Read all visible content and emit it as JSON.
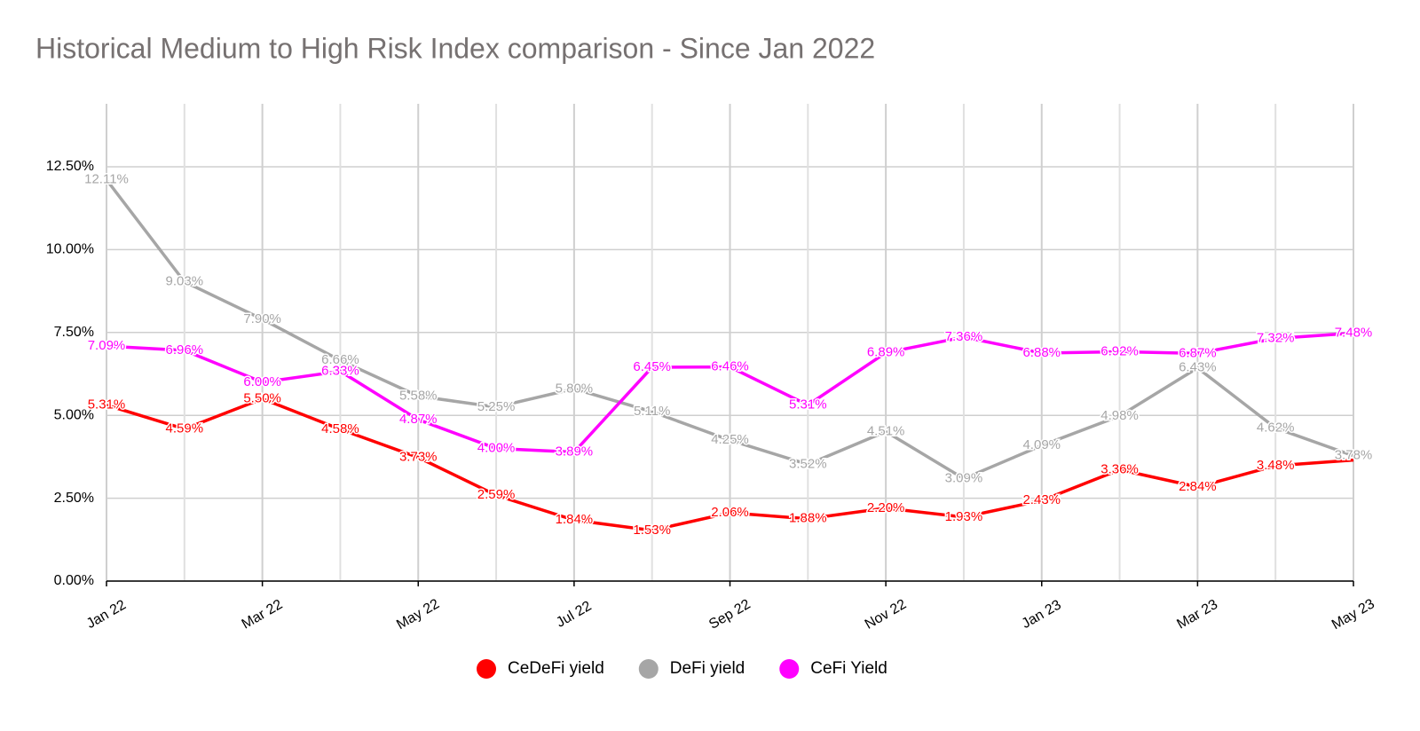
{
  "chart_data": {
    "type": "line",
    "title": "Historical Medium to High Risk Index comparison - Since Jan 2022",
    "categories": [
      "Jan 22",
      null,
      "Mar 22",
      null,
      "May 22",
      null,
      "Jul 22",
      null,
      "Sep 22",
      null,
      "Nov 22",
      null,
      "Jan 23",
      null,
      "Mar 23",
      null,
      "May 23"
    ],
    "series": [
      {
        "name": "CeDeFi yield",
        "color": "#ff0000",
        "values": [
          5.31,
          4.59,
          5.5,
          4.58,
          3.73,
          2.59,
          1.84,
          1.53,
          2.06,
          1.88,
          2.2,
          1.93,
          2.43,
          3.36,
          2.84,
          3.48,
          3.65
        ],
        "value_labels": [
          "5.31%",
          "4.59%",
          "5.50%",
          "4.58%",
          "3.73%",
          "2.59%",
          "1.84%",
          "1.53%",
          "2.06%",
          "1.88%",
          "2.20%",
          "1.93%",
          "2.43%",
          "3.36%",
          "2.84%",
          "3.48%",
          null
        ]
      },
      {
        "name": "DeFi yield",
        "color": "#a6a6a6",
        "values": [
          12.11,
          9.03,
          7.9,
          6.66,
          5.58,
          5.25,
          5.8,
          5.11,
          4.25,
          3.52,
          4.51,
          3.09,
          4.09,
          4.98,
          6.43,
          4.62,
          3.78
        ],
        "value_labels": [
          "12.11%",
          "9.03%",
          "7.90%",
          "6.66%",
          "5.58%",
          "5.25%",
          "5.80%",
          "5.11%",
          "4.25%",
          "3.52%",
          "4.51%",
          "3.09%",
          "4.09%",
          "4.98%",
          "6.43%",
          "4.62%",
          "3.78%"
        ]
      },
      {
        "name": "CeFi Yield",
        "color": "#ff00ff",
        "values": [
          7.09,
          6.96,
          6.0,
          6.33,
          4.87,
          4.0,
          3.89,
          6.45,
          6.46,
          5.31,
          6.89,
          7.36,
          6.88,
          6.92,
          6.87,
          7.32,
          7.48
        ],
        "value_labels": [
          "7.09%",
          "6.96%",
          "6.00%",
          "6.33%",
          "4.87%",
          "4.00%",
          "3.89%",
          "6.45%",
          "6.46%",
          "5.31%",
          "6.89%",
          "7.36%",
          "6.88%",
          "6.92%",
          "6.87%",
          "7.32%",
          "7.48%"
        ]
      }
    ],
    "ylim": [
      0,
      14.4
    ],
    "yticks": [
      {
        "value": 0,
        "label": "0.00%"
      },
      {
        "value": 2.5,
        "label": "2.50%"
      },
      {
        "value": 5,
        "label": "5.00%"
      },
      {
        "value": 7.5,
        "label": "7.50%"
      },
      {
        "value": 10,
        "label": "10.00%"
      },
      {
        "value": 12.5,
        "label": "12.50%"
      }
    ],
    "grid": true,
    "legend": "bottom"
  }
}
